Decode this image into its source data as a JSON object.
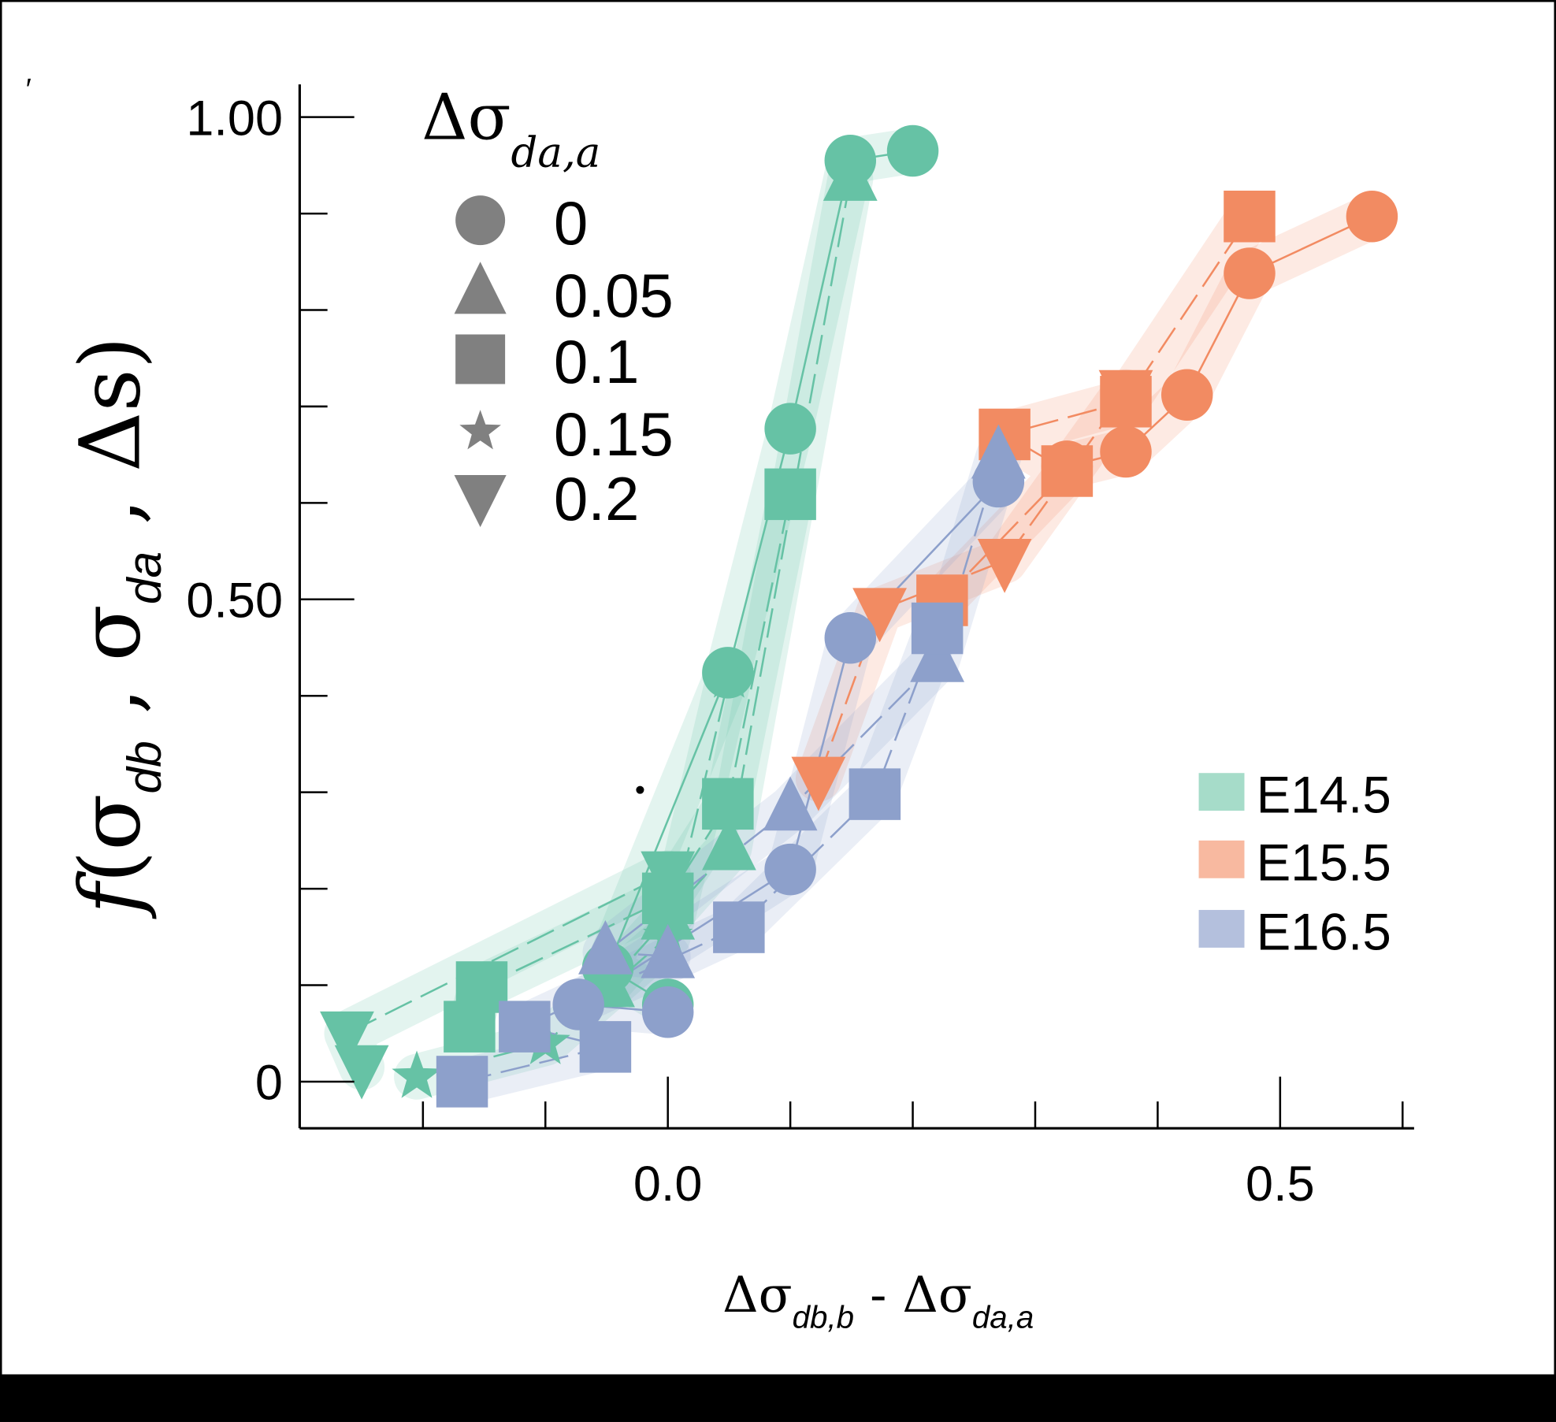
{
  "chart_data": {
    "type": "scatter",
    "title": "",
    "xlabel_parts": [
      "Δσ",
      "db,b",
      " - Δσ",
      "da,a"
    ],
    "ylabel_parts": [
      "f",
      "(σ",
      "db",
      " , σ",
      "da",
      " , Δs)"
    ],
    "xlim": [
      -0.302,
      0.61
    ],
    "ylim": [
      -0.048,
      1.03
    ],
    "x_ticks": [
      -0.2,
      -0.1,
      0.0,
      0.1,
      0.2,
      0.3,
      0.4,
      0.5,
      0.6
    ],
    "x_tick_labels": [
      {
        "value": 0.0,
        "label": "0.0"
      },
      {
        "value": 0.5,
        "label": "0.5"
      }
    ],
    "y_ticks": [
      0,
      0.1,
      0.2,
      0.3,
      0.4,
      0.5,
      0.6,
      0.7,
      0.8,
      0.9,
      1.0
    ],
    "y_tick_labels": [
      {
        "value": 0,
        "label": "0"
      },
      {
        "value": 0.5,
        "label": "0.50"
      },
      {
        "value": 1.0,
        "label": "1.00"
      }
    ],
    "grid": false,
    "marker_legend": {
      "title": "Δσ",
      "title_sub": "da,a",
      "placement": "top-left",
      "entries": [
        {
          "shape": "circle",
          "label": "0"
        },
        {
          "shape": "triangle",
          "label": "0.05"
        },
        {
          "shape": "square",
          "label": "0.1"
        },
        {
          "shape": "star",
          "label": "0.15"
        },
        {
          "shape": "triangle-down",
          "label": "0.2"
        }
      ]
    },
    "color_legend": {
      "placement": "bottom-right",
      "entries": [
        {
          "label": "E14.5",
          "color": "#a6dcc9"
        },
        {
          "label": "E15.5",
          "color": "#f8b9a0"
        },
        {
          "label": "E16.5",
          "color": "#b4c0dd"
        }
      ]
    },
    "series": [
      {
        "name": "E14.5",
        "color": "#66c2a5",
        "groups": [
          {
            "shape": "circle",
            "delta": 0,
            "points": [
              [
                -0.049,
                0.118
              ],
              [
                0.0,
                0.08
              ],
              [
                0.049,
                0.424
              ],
              [
                0.1,
                0.677
              ],
              [
                0.149,
                0.955
              ],
              [
                0.2,
                0.965
              ]
            ]
          },
          {
            "shape": "triangle",
            "delta": 0.05,
            "points": [
              [
                -0.049,
                0.1
              ],
              [
                0.0,
                0.17
              ],
              [
                0.05,
                0.242
              ],
              [
                0.149,
                0.936
              ]
            ]
          },
          {
            "shape": "square",
            "delta": 0.1,
            "points": [
              [
                -0.162,
                0.057
              ],
              [
                -0.152,
                0.098
              ],
              [
                0.0,
                0.19
              ],
              [
                0.049,
                0.288
              ],
              [
                0.1,
                0.609
              ]
            ]
          },
          {
            "shape": "star",
            "delta": 0.15,
            "points": [
              [
                -0.205,
                0.005
              ],
              [
                -0.1,
                0.04
              ],
              [
                0.0,
                0.15
              ],
              [
                0.05,
                0.42
              ]
            ]
          },
          {
            "shape": "triangle-down",
            "delta": 0.2,
            "points": [
              [
                -0.262,
                0.05
              ],
              [
                -0.25,
                0.015
              ],
              [
                0.0,
                0.216
              ]
            ]
          }
        ]
      },
      {
        "name": "E15.5",
        "color": "#f28b62",
        "groups": [
          {
            "shape": "circle",
            "delta": 0,
            "points": [
              [
                0.326,
                0.638
              ],
              [
                0.374,
                0.653
              ],
              [
                0.424,
                0.712
              ],
              [
                0.475,
                0.838
              ],
              [
                0.575,
                0.897
              ]
            ]
          },
          {
            "shape": "square",
            "delta": 0.1,
            "points": [
              [
                0.224,
                0.499
              ],
              [
                0.275,
                0.671
              ],
              [
                0.326,
                0.633
              ],
              [
                0.374,
                0.705
              ],
              [
                0.475,
                0.897
              ]
            ]
          },
          {
            "shape": "triangle-down",
            "delta": 0.2,
            "points": [
              [
                0.123,
                0.314
              ],
              [
                0.173,
                0.489
              ],
              [
                0.275,
                0.54
              ],
              [
                0.374,
                0.715
              ]
            ]
          }
        ]
      },
      {
        "name": "E16.5",
        "color": "#8da0cb",
        "groups": [
          {
            "shape": "circle",
            "delta": 0,
            "points": [
              [
                -0.073,
                0.08
              ],
              [
                0.0,
                0.072
              ],
              [
                0.1,
                0.22
              ],
              [
                0.149,
                0.46
              ],
              [
                0.27,
                0.622
              ]
            ]
          },
          {
            "shape": "triangle",
            "delta": 0.05,
            "points": [
              [
                -0.051,
                0.134
              ],
              [
                0.0,
                0.13
              ],
              [
                0.1,
                0.283
              ],
              [
                0.22,
                0.437
              ],
              [
                0.27,
                0.648
              ]
            ]
          },
          {
            "shape": "square",
            "delta": 0.1,
            "points": [
              [
                -0.168,
                0.0
              ],
              [
                -0.117,
                0.057
              ],
              [
                -0.051,
                0.036
              ],
              [
                0.058,
                0.16
              ],
              [
                0.169,
                0.298
              ],
              [
                0.22,
                0.47
              ]
            ]
          }
        ]
      }
    ]
  }
}
